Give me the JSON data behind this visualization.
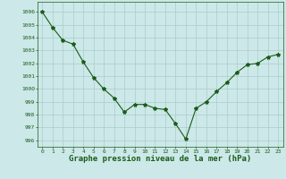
{
  "x": [
    0,
    1,
    2,
    3,
    4,
    5,
    6,
    7,
    8,
    9,
    10,
    11,
    12,
    13,
    14,
    15,
    16,
    17,
    18,
    19,
    20,
    21,
    22,
    23
  ],
  "y": [
    1006.0,
    1004.8,
    1003.8,
    1003.5,
    1002.1,
    1000.9,
    1000.0,
    999.3,
    998.2,
    998.8,
    998.8,
    998.5,
    998.4,
    997.3,
    996.1,
    998.5,
    999.0,
    999.8,
    1000.5,
    1001.3,
    1001.9,
    1002.0,
    1002.5,
    1002.7
  ],
  "line_color": "#1a5c1a",
  "marker": "*",
  "marker_size": 3,
  "bg_color": "#cce8e8",
  "grid_color": "#aacccc",
  "xlabel": "Graphe pression niveau de la mer (hPa)",
  "xlabel_fontsize": 6.5,
  "tick_color": "#1a5c1a",
  "ylim": [
    995.5,
    1006.8
  ],
  "xlim": [
    -0.5,
    23.5
  ],
  "yticks": [
    996,
    997,
    998,
    999,
    1000,
    1001,
    1002,
    1003,
    1004,
    1005,
    1006
  ],
  "xticks": [
    0,
    1,
    2,
    3,
    4,
    5,
    6,
    7,
    8,
    9,
    10,
    11,
    12,
    13,
    14,
    15,
    16,
    17,
    18,
    19,
    20,
    21,
    22,
    23
  ]
}
